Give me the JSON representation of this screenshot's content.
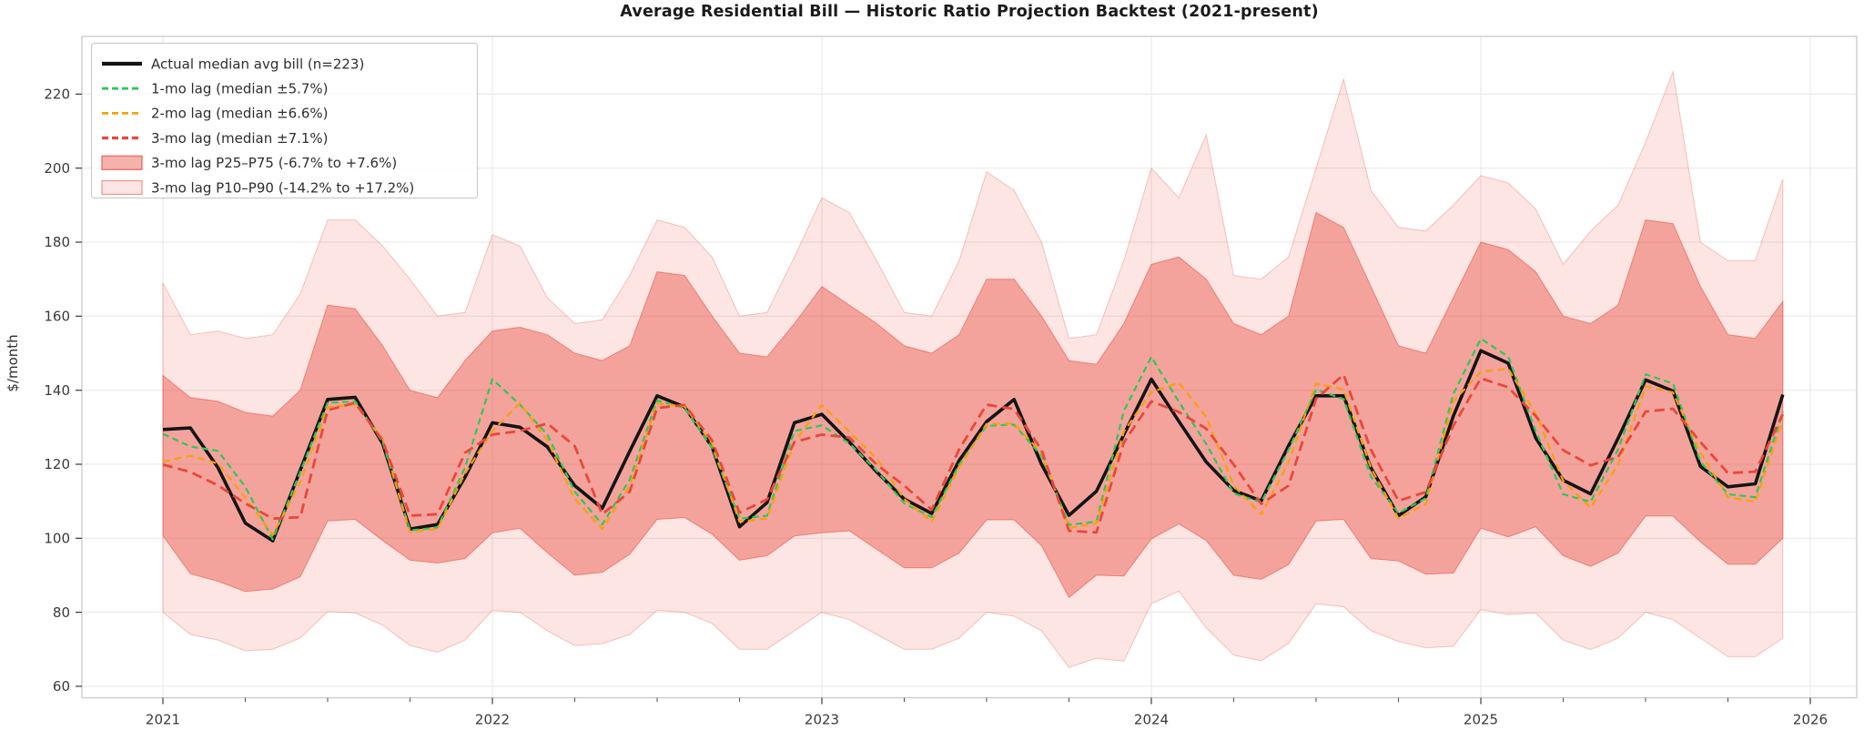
{
  "chart_data": {
    "type": "line",
    "title": "Average Residential Bill — Historic Ratio Projection Backtest (2021-present)",
    "ylabel": "$/month",
    "grid": true,
    "legend_position": "upper left",
    "x_range": [
      2020.754,
      2026.141
    ],
    "y_range": [
      56.9,
      235.6
    ],
    "x_start_year": 2021,
    "x_tick_years": [
      2021,
      2022,
      2023,
      2024,
      2025,
      2026
    ],
    "x_tick_labels": [
      "2021",
      "2022",
      "2023",
      "2024",
      "2025",
      "2026"
    ],
    "y_ticks": [
      60,
      80,
      100,
      120,
      140,
      160,
      180,
      200,
      220
    ],
    "months": [
      "2021-01",
      "2021-02",
      "2021-03",
      "2021-04",
      "2021-05",
      "2021-06",
      "2021-07",
      "2021-08",
      "2021-09",
      "2021-10",
      "2021-11",
      "2021-12",
      "2022-01",
      "2022-02",
      "2022-03",
      "2022-04",
      "2022-05",
      "2022-06",
      "2022-07",
      "2022-08",
      "2022-09",
      "2022-10",
      "2022-11",
      "2022-12",
      "2023-01",
      "2023-02",
      "2023-03",
      "2023-04",
      "2023-05",
      "2023-06",
      "2023-07",
      "2023-08",
      "2023-09",
      "2023-10",
      "2023-11",
      "2023-12",
      "2024-01",
      "2024-02",
      "2024-03",
      "2024-04",
      "2024-05",
      "2024-06",
      "2024-07",
      "2024-08",
      "2024-09",
      "2024-10",
      "2024-11",
      "2024-12",
      "2025-01",
      "2025-02",
      "2025-03",
      "2025-04",
      "2025-05",
      "2025-06",
      "2025-07",
      "2025-08",
      "2025-09",
      "2025-10",
      "2025-11",
      "2025-12"
    ],
    "series": [
      {
        "name": "Actual median avg bill  (n=223)",
        "data_name": "series-actual-median-bill",
        "color": "#141414",
        "style": "solid",
        "dash": "",
        "width": 3.6,
        "values": [
          129.4,
          129.8,
          119.1,
          104.1,
          99.3,
          118.4,
          137.5,
          138.1,
          125.6,
          102.5,
          103.7,
          116.5,
          131.2,
          130.0,
          124.7,
          114.2,
          108.1,
          123.5,
          138.5,
          135.5,
          124.7,
          103.1,
          109.6,
          131.2,
          133.5,
          126.0,
          117.9,
          110.6,
          106.7,
          121.0,
          131.5,
          137.5,
          120.0,
          106.2,
          112.7,
          128.0,
          143.0,
          131.6,
          120.6,
          112.9,
          110.1,
          125.0,
          138.5,
          138.5,
          119.0,
          106.1,
          111.2,
          133.0,
          150.7,
          147.3,
          127.1,
          115.7,
          112.0,
          127.0,
          142.8,
          139.8,
          119.4,
          113.9,
          114.7,
          138.8
        ]
      },
      {
        "name": "1-mo lag  (median ±5.7%)",
        "data_name": "series-1-mo-lag",
        "color": "#2dc75a",
        "style": "dashed",
        "dash": "7 4.5",
        "width": 2.2,
        "values": [
          128.2,
          124.8,
          123.6,
          113.9,
          99.7,
          117.9,
          136.6,
          137.0,
          126.0,
          102.1,
          102.9,
          119.1,
          143.0,
          136.1,
          128.0,
          112.6,
          103.7,
          115.9,
          137.2,
          135.2,
          124.4,
          105.3,
          106.1,
          129.0,
          130.5,
          125.6,
          118.3,
          109.4,
          105.7,
          119.9,
          130.4,
          130.7,
          122.3,
          103.6,
          104.5,
          134.4,
          149.0,
          136.9,
          125.5,
          112.1,
          109.7,
          123.9,
          140.2,
          137.6,
          116.6,
          106.8,
          110.8,
          139.0,
          153.9,
          149.1,
          128.9,
          111.9,
          109.8,
          124.0,
          144.3,
          141.8,
          120.7,
          111.9,
          111.1,
          134.2
        ]
      },
      {
        "name": "2-mo lag  (median ±6.6%)",
        "data_name": "series-2-mo-lag",
        "color": "#f9a008",
        "style": "dashed",
        "dash": "8 5",
        "width": 2.2,
        "values": [
          120.7,
          122.3,
          120.2,
          111.0,
          100.9,
          115.1,
          135.4,
          136.2,
          126.8,
          101.7,
          102.5,
          117.5,
          129.0,
          136.5,
          126.4,
          110.6,
          102.5,
          114.2,
          136.4,
          135.6,
          125.6,
          104.5,
          105.3,
          126.0,
          136.0,
          128.8,
          121.5,
          110.6,
          104.5,
          119.1,
          130.9,
          131.0,
          123.1,
          102.8,
          104.0,
          128.8,
          139.5,
          142.0,
          132.8,
          114.2,
          106.4,
          120.6,
          141.8,
          140.2,
          119.0,
          105.3,
          109.3,
          137.0,
          145.0,
          145.8,
          133.7,
          115.5,
          108.2,
          119.9,
          141.0,
          139.4,
          123.1,
          111.1,
          109.8,
          132.1
        ]
      },
      {
        "name": "3-mo lag  (median ±7.1%)",
        "data_name": "series-3-mo-lag",
        "color": "#e8483a",
        "style": "dashed",
        "dash": "11 6",
        "width": 2.8,
        "values": [
          119.9,
          117.9,
          114.3,
          109.4,
          105.3,
          105.7,
          134.6,
          136.6,
          126.4,
          106.1,
          106.5,
          123.1,
          128.0,
          129.0,
          131.0,
          124.9,
          106.5,
          112.6,
          135.2,
          136.0,
          126.4,
          106.9,
          110.5,
          126.0,
          128.0,
          127.2,
          119.9,
          114.2,
          107.7,
          124.0,
          136.1,
          134.9,
          123.9,
          102.0,
          101.6,
          125.9,
          137.0,
          134.1,
          129.6,
          119.9,
          109.3,
          114.2,
          137.7,
          144.2,
          123.9,
          110.1,
          112.5,
          130.4,
          143.2,
          140.8,
          133.0,
          123.8,
          119.7,
          122.0,
          134.2,
          135.0,
          126.0,
          117.6,
          118.0,
          133.5
        ]
      }
    ],
    "bands": [
      {
        "name": "3-mo lag P25–P75  (-6.7% to +7.6%)",
        "data_name": "band-3-mo-lag-p25-p75",
        "color": "#e8483a",
        "opacity": 0.42,
        "edge_opacity": 0.55,
        "upper": [
          144,
          138,
          137,
          134,
          133,
          140,
          163,
          162,
          152,
          140,
          138,
          148,
          156,
          157,
          155,
          150,
          148,
          152,
          172,
          171,
          160,
          150,
          149,
          158,
          168,
          163,
          158,
          152,
          150,
          155,
          170,
          170,
          160,
          148,
          147,
          158,
          174,
          176,
          170,
          158,
          155,
          160,
          188,
          184,
          168,
          152,
          150,
          165,
          180,
          178,
          172,
          160,
          158,
          163,
          186,
          185,
          168,
          155,
          154,
          164
        ],
        "lower": [
          100.7,
          90.4,
          88.4,
          85.6,
          86.3,
          89.6,
          104.7,
          105.1,
          99.4,
          94.1,
          93.3,
          94.5,
          101.5,
          102.7,
          96.1,
          90.0,
          90.8,
          95.7,
          105.1,
          105.6,
          101.1,
          94.1,
          95.3,
          100.6,
          101.5,
          102.0,
          97.0,
          92.0,
          92.0,
          96.0,
          105.0,
          105.0,
          98.0,
          84.0,
          90.0,
          89.8,
          99.8,
          103.9,
          99.4,
          90.0,
          88.9,
          92.9,
          104.7,
          105.1,
          94.5,
          93.9,
          90.3,
          90.6,
          102.7,
          100.4,
          103.1,
          95.3,
          92.4,
          96.0,
          106.0,
          106.0,
          99.0,
          93.0,
          93.0,
          100.0
        ]
      },
      {
        "name": "3-mo lag P10–P90  (-14.2% to +17.2%)",
        "data_name": "band-3-mo-lag-p10-p90",
        "color": "#e8483a",
        "opacity": 0.14,
        "edge_opacity": 0.3,
        "upper": [
          169,
          155,
          156,
          154,
          155,
          166,
          186,
          186,
          179,
          170,
          160,
          161,
          182,
          179,
          165,
          158,
          159,
          171,
          186,
          184,
          176,
          160,
          161,
          176,
          192,
          188,
          175,
          161,
          160,
          175,
          199,
          194,
          180,
          154,
          155,
          175,
          200,
          192,
          209,
          171,
          170,
          176,
          200,
          224,
          194,
          184,
          183,
          190,
          198,
          196,
          189,
          174,
          183,
          190,
          207,
          226,
          180,
          175,
          175,
          197
        ],
        "lower": [
          80,
          74,
          72.5,
          69.6,
          70,
          73,
          80.2,
          79.8,
          76.5,
          71,
          69.2,
          72.5,
          80.5,
          80,
          75,
          71,
          71.5,
          74,
          80.5,
          80,
          77,
          70,
          70,
          75,
          80,
          78,
          74,
          70,
          70,
          73,
          80,
          79,
          75,
          65.1,
          67.6,
          66.8,
          82.3,
          85.7,
          75.8,
          68.4,
          66.9,
          71.6,
          82.3,
          81.5,
          75,
          72.1,
          70.4,
          70.8,
          80.7,
          79.4,
          79.8,
          72.5,
          69.9,
          73,
          80,
          78,
          73,
          68,
          68,
          73
        ]
      }
    ]
  }
}
